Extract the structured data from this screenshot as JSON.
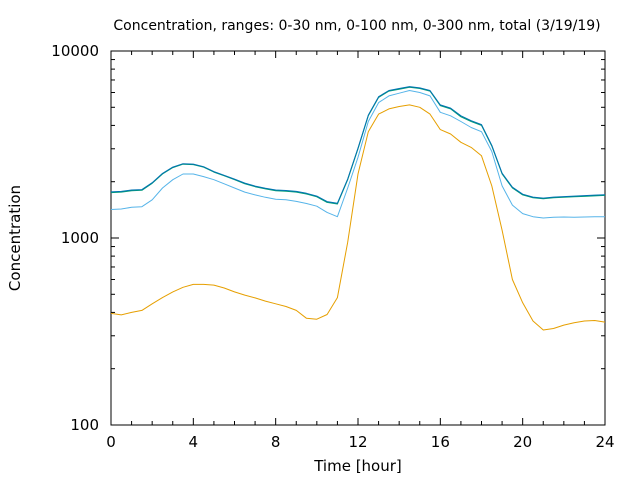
{
  "chart_data": {
    "type": "line",
    "title": "Concentration, ranges: 0-30 nm, 0-100 nm, 0-300 nm, total (3/19/19)",
    "xlabel": "Time [hour]",
    "ylabel": "Concentration",
    "xlim": [
      0,
      24
    ],
    "ylim": [
      100,
      10000
    ],
    "yscale": "log",
    "grid": false,
    "legend": "none",
    "xticks": [
      0,
      4,
      8,
      12,
      16,
      20,
      24
    ],
    "xtick_labels": [
      "0",
      "4",
      "8",
      "12",
      "16",
      "20",
      "24"
    ],
    "yticks": [
      100,
      1000,
      10000
    ],
    "ytick_labels": [
      "100",
      "1000",
      "10000"
    ],
    "series": [
      {
        "color": "#e69f00",
        "x": [
          0,
          0.5,
          1,
          1.5,
          2,
          2.5,
          3,
          3.5,
          4,
          4.5,
          5,
          5.5,
          6,
          6.5,
          7,
          7.5,
          8,
          8.5,
          9,
          9.5,
          10,
          10.5,
          11,
          11.5,
          12,
          12.5,
          13,
          13.5,
          14,
          14.5,
          15,
          15.5,
          16,
          16.5,
          17,
          17.5,
          18,
          18.5,
          19,
          19.5,
          20,
          20.5,
          21,
          21.5,
          22,
          22.5,
          23,
          23.5,
          24
        ],
        "y": [
          395,
          388,
          400,
          410,
          445,
          480,
          515,
          545,
          565,
          565,
          560,
          540,
          515,
          495,
          478,
          460,
          445,
          430,
          410,
          372,
          368,
          390,
          480,
          950,
          2200,
          3700,
          4600,
          4900,
          5050,
          5150,
          5000,
          4600,
          3800,
          3600,
          3250,
          3050,
          2750,
          1900,
          1100,
          600,
          450,
          360,
          322,
          328,
          342,
          352,
          360,
          362,
          355
        ]
      },
      {
        "color": "#56b4e9",
        "x": [
          0,
          0.5,
          1,
          1.5,
          2,
          2.5,
          3,
          3.5,
          4,
          4.5,
          5,
          5.5,
          6,
          6.5,
          7,
          7.5,
          8,
          8.5,
          9,
          9.5,
          10,
          10.5,
          11,
          11.5,
          12,
          12.5,
          13,
          13.5,
          14,
          14.5,
          15,
          15.5,
          16,
          16.5,
          17,
          17.5,
          18,
          18.5,
          19,
          19.5,
          20,
          20.5,
          21,
          21.5,
          22,
          22.5,
          23,
          23.5,
          24
        ],
        "y": [
          1420,
          1430,
          1460,
          1470,
          1600,
          1850,
          2050,
          2200,
          2200,
          2130,
          2050,
          1950,
          1850,
          1760,
          1700,
          1650,
          1610,
          1600,
          1570,
          1530,
          1480,
          1370,
          1300,
          1850,
          2700,
          4200,
          5300,
          5750,
          5950,
          6150,
          6000,
          5750,
          4700,
          4500,
          4200,
          3900,
          3700,
          2900,
          1900,
          1500,
          1350,
          1300,
          1280,
          1290,
          1295,
          1290,
          1295,
          1300,
          1300
        ]
      },
      {
        "color": "#009e73",
        "x": [
          0,
          0.5,
          1,
          1.5,
          2,
          2.5,
          3,
          3.5,
          4,
          4.5,
          5,
          5.5,
          6,
          6.5,
          7,
          7.5,
          8,
          8.5,
          9,
          9.5,
          10,
          10.5,
          11,
          11.5,
          12,
          12.5,
          13,
          13.5,
          14,
          14.5,
          15,
          15.5,
          16,
          16.5,
          17,
          17.5,
          18,
          18.5,
          19,
          19.5,
          20,
          20.5,
          21,
          21.5,
          22,
          22.5,
          23,
          23.5,
          24
        ],
        "y": [
          1750,
          1760,
          1790,
          1800,
          1960,
          2200,
          2380,
          2480,
          2470,
          2390,
          2250,
          2150,
          2050,
          1950,
          1880,
          1830,
          1790,
          1780,
          1760,
          1720,
          1660,
          1550,
          1520,
          2050,
          3000,
          4500,
          5650,
          6100,
          6250,
          6400,
          6300,
          6100,
          5100,
          4900,
          4450,
          4200,
          4000,
          3100,
          2200,
          1850,
          1700,
          1640,
          1620,
          1640,
          1650,
          1660,
          1670,
          1680,
          1690
        ]
      },
      {
        "color": "#0072b2",
        "x": [
          0,
          0.5,
          1,
          1.5,
          2,
          2.5,
          3,
          3.5,
          4,
          4.5,
          5,
          5.5,
          6,
          6.5,
          7,
          7.5,
          8,
          8.5,
          9,
          9.5,
          10,
          10.5,
          11,
          11.5,
          12,
          12.5,
          13,
          13.5,
          14,
          14.5,
          15,
          15.5,
          16,
          16.5,
          17,
          17.5,
          18,
          18.5,
          19,
          19.5,
          20,
          20.5,
          21,
          21.5,
          22,
          22.5,
          23,
          23.5,
          24
        ],
        "y": [
          1765,
          1775,
          1805,
          1815,
          1975,
          2215,
          2395,
          2495,
          2485,
          2405,
          2265,
          2165,
          2065,
          1965,
          1895,
          1845,
          1805,
          1795,
          1775,
          1735,
          1675,
          1565,
          1535,
          2070,
          3030,
          4540,
          5700,
          6150,
          6300,
          6450,
          6350,
          6150,
          5150,
          4950,
          4500,
          4240,
          4040,
          3130,
          2220,
          1870,
          1715,
          1655,
          1635,
          1655,
          1665,
          1675,
          1685,
          1695,
          1705
        ]
      }
    ]
  }
}
